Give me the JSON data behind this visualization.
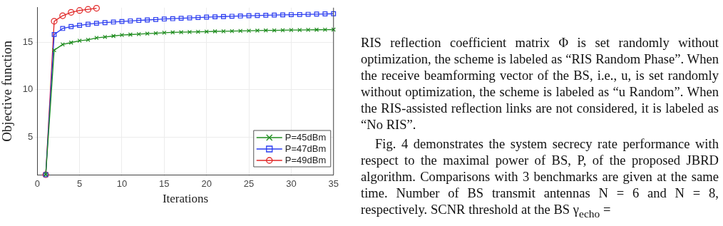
{
  "chart_data": {
    "type": "line",
    "xlabel": "Iterations",
    "ylabel": "Objective function",
    "x": [
      1,
      2,
      3,
      4,
      5,
      6,
      7,
      8,
      9,
      10,
      11,
      12,
      13,
      14,
      15,
      16,
      17,
      18,
      19,
      20,
      21,
      22,
      23,
      24,
      25,
      26,
      27,
      28,
      29,
      30,
      31,
      32,
      33,
      34,
      35
    ],
    "series": [
      {
        "name": "P=45dBm",
        "color": "#1e8c1e",
        "marker": "cross",
        "values": [
          1,
          14.2,
          14.8,
          15.0,
          15.2,
          15.3,
          15.5,
          15.6,
          15.7,
          15.8,
          15.85,
          15.9,
          15.95,
          16.0,
          16.05,
          16.08,
          16.1,
          16.12,
          16.14,
          16.17,
          16.19,
          16.2,
          16.22,
          16.24,
          16.26,
          16.27,
          16.29,
          16.3,
          16.31,
          16.33,
          16.34,
          16.35,
          16.36,
          16.37,
          16.38
        ]
      },
      {
        "name": "P=47dBm",
        "color": "#2a3cf0",
        "marker": "square",
        "values": [
          1,
          15.86,
          16.5,
          16.7,
          16.83,
          16.95,
          17.05,
          17.12,
          17.18,
          17.24,
          17.3,
          17.35,
          17.4,
          17.45,
          17.5,
          17.54,
          17.58,
          17.62,
          17.66,
          17.7,
          17.73,
          17.76,
          17.79,
          17.82,
          17.85,
          17.87,
          17.9,
          17.92,
          17.94,
          17.96,
          17.98,
          18.0,
          18.02,
          18.04,
          18.06
        ]
      },
      {
        "name": "P=49dBm",
        "color": "#e02424",
        "marker": "circle",
        "values": [
          1,
          17.26,
          17.85,
          18.21,
          18.41,
          18.52,
          18.64,
          null,
          null,
          null,
          null,
          null,
          null,
          null,
          null,
          null,
          null,
          null,
          null,
          null,
          null,
          null,
          null,
          null,
          null,
          null,
          null,
          null,
          null,
          null,
          null,
          null,
          null,
          null,
          null
        ]
      }
    ],
    "xlim": [
      0,
      35
    ],
    "xticks": [
      0,
      5,
      10,
      15,
      20,
      25,
      30,
      35
    ],
    "ylim": [
      1,
      18.7
    ],
    "yticks": [
      5,
      10,
      15
    ],
    "grid": true,
    "legend": "bottom right",
    "line_style": "solid",
    "annotations": [
      "RIS reflection coefficient matrix Φ is set randomly without optimization, the scheme is labeled as “RIS Random Phase”. When the receive beamforming vector of the BS, i.e., u, is set randomly without optimization, the scheme is labeled as “u Random”. When the RIS-assisted reflection links are not considered, it is labeled as “No RIS”.",
      "Fig. 4 demonstrates the system secrecy rate performance with respect to the maximal power of BS, P, of the proposed JBRD algorithm. Comparisons with 3 benchmarks are given at the same time. Number of BS transmit antennas N = 6 and N = 8, respectively. SCNR threshold at the BS γ$_{echo}$ ="
    ]
  }
}
